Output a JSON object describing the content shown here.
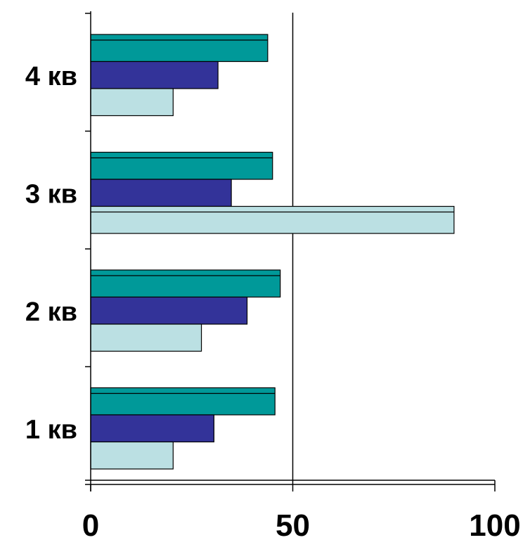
{
  "chart_data": {
    "type": "bar",
    "orientation": "horizontal",
    "categories": [
      "1 кв",
      "2 кв",
      "3 кв",
      "4 кв"
    ],
    "series": [
      {
        "color": "#009999",
        "values": [
          45.6,
          46.9,
          45.0,
          43.8
        ]
      },
      {
        "color": "#333399",
        "values": [
          30.5,
          38.7,
          34.8,
          31.5
        ]
      },
      {
        "color": "#BBE0E3",
        "values": [
          20.4,
          27.4,
          89.9,
          20.4
        ]
      }
    ],
    "xticks": [
      "0",
      "50",
      "100"
    ],
    "xlim": [
      0,
      100
    ],
    "gridlines": [
      50
    ],
    "grid": true,
    "legend": false
  }
}
